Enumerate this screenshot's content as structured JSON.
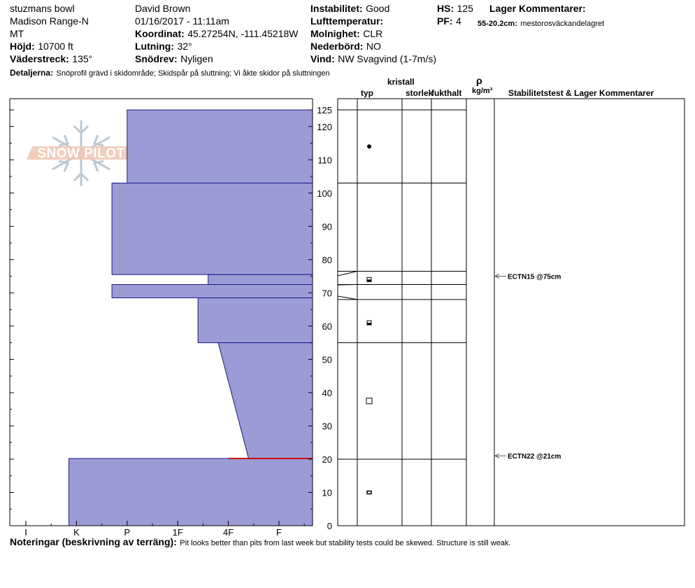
{
  "header": {
    "location": "stuzmans bowl",
    "range": "Madison Range-N",
    "state": "MT",
    "elevation_label": "Höjd:",
    "elevation": "10700 ft",
    "aspect_label": "Väderstreck:",
    "aspect": "135°",
    "observer": "David Brown",
    "datetime": "01/16/2017 - 11:11am",
    "coord_label": "Koordinat:",
    "coords": "45.27254N, -111.45218W",
    "slope_label": "Lutning:",
    "slope": "32°",
    "drift_label": "Snödrev:",
    "drift": "Nyligen",
    "stability_label": "Instabilitet:",
    "stability": "Good",
    "airtemp_label": "Lufttemperatur:",
    "airtemp": "",
    "sky_label": "Molnighet:",
    "sky": "CLR",
    "precip_label": "Nederbörd:",
    "precip": "NO",
    "wind_label": "Vind:",
    "wind": "NW Svagvind (1-7m/s)",
    "hs_label": "HS:",
    "hs": "125",
    "pf_label": "PF:",
    "pf": "4",
    "layer_comments_label": "Lager Kommentarer:",
    "layer_comment_range": "55-20.2cm:",
    "layer_comment_text": "mestorosväckandelagret",
    "details_label": "Detaljerna:",
    "details": "Snöprofil grävd i skidområde;  Skidspår på sluttning;  Vi åkte skidor på sluttningen"
  },
  "logo_text": "SNOW PILOT",
  "columns": {
    "crystal": "kristall",
    "type": "typ",
    "size": "storlek",
    "moisture": "fukthalt",
    "rho": "ρ",
    "density_unit": "kg/m³",
    "stability_comments": "Stabilitetstest & Lager Kommentarer"
  },
  "tests": [
    {
      "label": "ECTN15 @75cm",
      "depth": 75
    },
    {
      "label": "ECTN22 @21cm",
      "depth": 21
    }
  ],
  "footer": {
    "notes_label": "Noteringar (beskrivning av terräng):",
    "notes": "Pit looks better than pits from last week but stability tests could be skewed. Structure is still weak."
  },
  "chart_data": {
    "type": "bar",
    "hardness_scale": [
      "I",
      "K",
      "P",
      "1F",
      "4F",
      "F"
    ],
    "hardness_ticks": [
      {
        "label": "I",
        "value": 0
      },
      {
        "label": "K",
        "value": 1
      },
      {
        "label": "P",
        "value": 2
      },
      {
        "label": "1F",
        "value": 3
      },
      {
        "label": "4F",
        "value": 4
      },
      {
        "label": "F",
        "value": 5
      }
    ],
    "height_axis": {
      "min": 0,
      "max": 125,
      "ticks": [
        125,
        120,
        110,
        100,
        90,
        80,
        70,
        60,
        50,
        40,
        30,
        20,
        10,
        0
      ]
    },
    "layers": [
      {
        "top": 125,
        "bottom": 103,
        "hardness_top": 2,
        "hardness_bottom": 2
      },
      {
        "top": 103,
        "bottom": 75.5,
        "hardness_top": 1.7,
        "hardness_bottom": 1.7
      },
      {
        "top": 75.5,
        "bottom": 72.5,
        "hardness_top": 3.6,
        "hardness_bottom": 3.6
      },
      {
        "top": 72.5,
        "bottom": 68.5,
        "hardness_top": 1.7,
        "hardness_bottom": 1.7
      },
      {
        "top": 68.5,
        "bottom": 55,
        "hardness_top": 3.4,
        "hardness_bottom": 3.4
      },
      {
        "top": 55,
        "bottom": 20.2,
        "hardness_top": 3.8,
        "hardness_bottom": 4.4
      },
      {
        "top": 20.2,
        "bottom": 0,
        "hardness_top": 0.85,
        "hardness_bottom": 0.85
      }
    ],
    "layer_boundaries": [
      125,
      103,
      76.5,
      72.5,
      68,
      55,
      20
    ],
    "grain_markers": [
      {
        "height": 114,
        "symbol": "dot"
      },
      {
        "height": 74,
        "symbol": "half-square"
      },
      {
        "height": 61,
        "symbol": "half-square"
      },
      {
        "height": 37.5,
        "symbol": "square"
      },
      {
        "height": 10,
        "symbol": "flat-square"
      }
    ],
    "red_layer": {
      "height": 20.2,
      "hardness_from": 4,
      "hardness_to": 5.7
    }
  }
}
